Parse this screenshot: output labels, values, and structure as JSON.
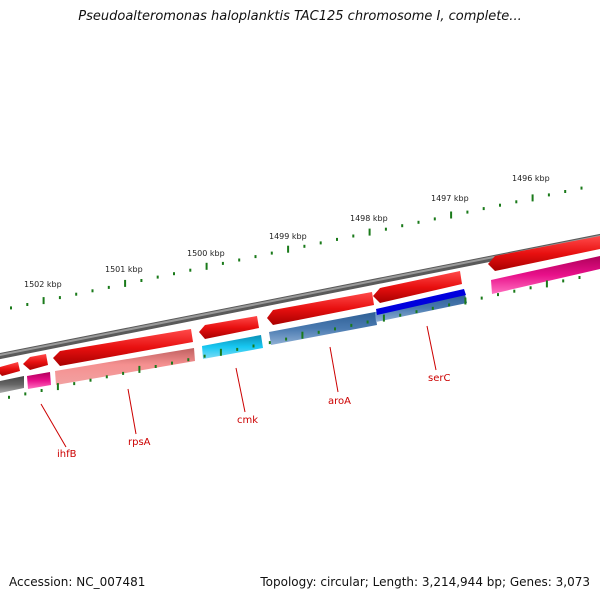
{
  "title": "Pseudoalteromonas haloplanktis TAC125 chromosome I, complete...",
  "footer": {
    "accession": "Accession: NC_007481",
    "summary": "Topology: circular; Length: 3,214,944 bp; Genes: 3,073"
  },
  "ticks": [
    "1502 kbp",
    "1501 kbp",
    "1500 kbp",
    "1499 kbp",
    "1498 kbp",
    "1497 kbp",
    "1496 kbp"
  ],
  "gene_labels": [
    "ihfB",
    "rpsA",
    "cmk",
    "aroA",
    "serC"
  ],
  "colors": {
    "gene": "#ee1111",
    "backbone": "#777777",
    "tick": "#1a7a1a",
    "label": "#cc0000",
    "cds_pink": "#f08080",
    "cds_cyan": "#00bfe6",
    "cds_steel": "#4a7ab0",
    "cds_blue": "#0000dd",
    "cds_magenta": "#e0107a",
    "cds_grey": "#666666"
  }
}
